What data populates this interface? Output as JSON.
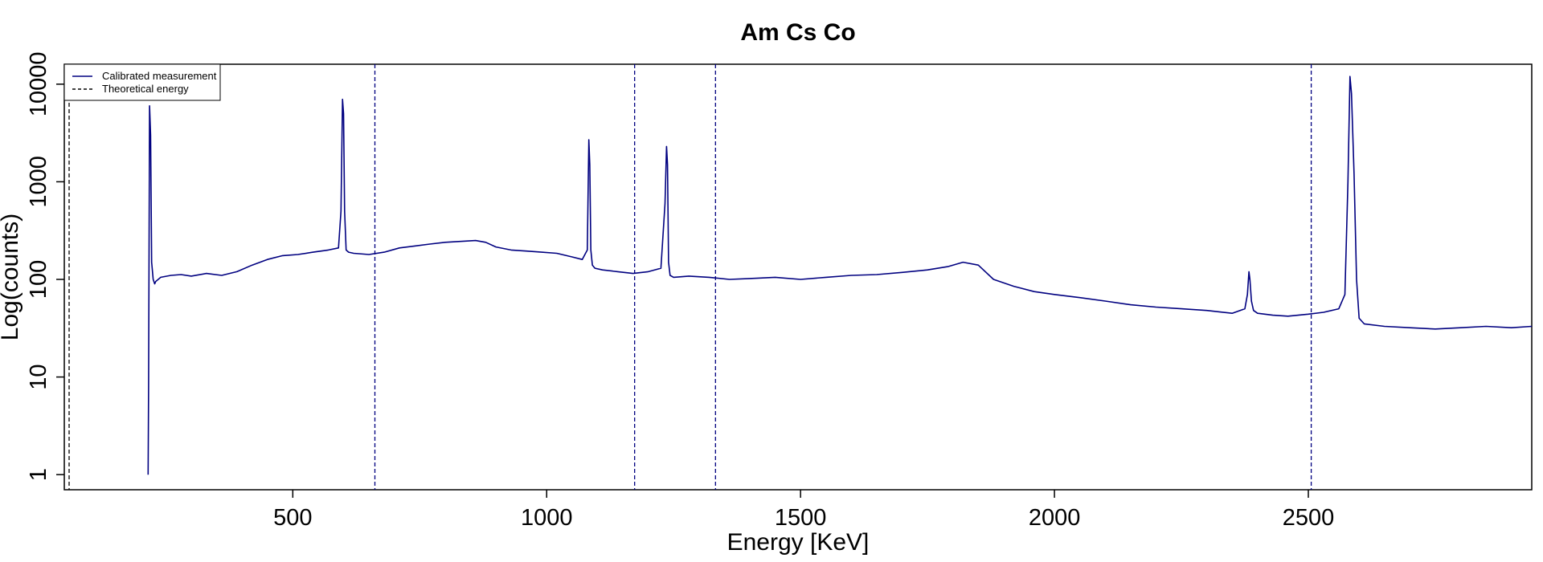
{
  "chart_data": {
    "type": "line",
    "title": "Am Cs Co",
    "xlabel": "Energy [KeV]",
    "ylabel": "Log(counts)",
    "xlim": [
      50,
      2940
    ],
    "ylim": [
      0.7,
      16000
    ],
    "y_scale": "log",
    "grid": false,
    "legend_placement": "top-left",
    "x_ticks": [
      500,
      1000,
      1500,
      2000,
      2500
    ],
    "x_tick_labels": [
      "500",
      "1000",
      "1500",
      "2000",
      "2500"
    ],
    "y_ticks": [
      1,
      10,
      100,
      1000,
      10000
    ],
    "y_tick_labels": [
      "1",
      "10",
      "100",
      "1000",
      "10000"
    ],
    "series": [
      {
        "name": "Calibrated measurement",
        "style": "solid",
        "color": "#000080",
        "x": [
          215,
          216,
          218,
          220,
          222,
          225,
          228,
          230,
          240,
          260,
          280,
          300,
          330,
          360,
          390,
          420,
          450,
          480,
          510,
          540,
          570,
          590,
          595,
          598,
          600,
          602,
          605,
          610,
          620,
          650,
          680,
          710,
          740,
          770,
          800,
          830,
          860,
          880,
          900,
          930,
          960,
          990,
          1020,
          1050,
          1070,
          1080,
          1083,
          1085,
          1087,
          1090,
          1095,
          1110,
          1140,
          1170,
          1200,
          1225,
          1233,
          1236,
          1238,
          1240,
          1243,
          1250,
          1280,
          1320,
          1360,
          1400,
          1450,
          1500,
          1550,
          1600,
          1650,
          1700,
          1750,
          1790,
          1820,
          1850,
          1880,
          1920,
          1960,
          2000,
          2050,
          2100,
          2150,
          2200,
          2250,
          2300,
          2350,
          2375,
          2380,
          2383,
          2385,
          2388,
          2392,
          2400,
          2430,
          2460,
          2500,
          2530,
          2560,
          2572,
          2578,
          2582,
          2585,
          2590,
          2595,
          2600,
          2610,
          2650,
          2700,
          2750,
          2800,
          2850,
          2900,
          2940
        ],
        "y": [
          1,
          8,
          6000,
          3000,
          150,
          100,
          90,
          95,
          105,
          110,
          112,
          108,
          115,
          110,
          120,
          140,
          160,
          175,
          180,
          190,
          200,
          210,
          500,
          7000,
          5000,
          500,
          200,
          190,
          185,
          180,
          190,
          210,
          220,
          230,
          240,
          245,
          250,
          240,
          215,
          200,
          195,
          190,
          185,
          170,
          160,
          200,
          2700,
          1500,
          200,
          140,
          130,
          125,
          120,
          115,
          120,
          130,
          600,
          2300,
          1500,
          150,
          110,
          105,
          108,
          105,
          100,
          102,
          105,
          100,
          105,
          110,
          112,
          118,
          125,
          135,
          150,
          140,
          100,
          85,
          75,
          70,
          65,
          60,
          55,
          52,
          50,
          48,
          45,
          50,
          70,
          120,
          100,
          60,
          48,
          45,
          43,
          42,
          44,
          46,
          50,
          70,
          1000,
          12000,
          8000,
          1200,
          100,
          40,
          35,
          33,
          32,
          31,
          32,
          33,
          32,
          33
        ]
      },
      {
        "name": "Theoretical energy",
        "style": "dashed",
        "color": "#000000",
        "x": [
          59.5
        ]
      },
      {
        "name": "",
        "style": "dashed",
        "color": "#000080",
        "x": [
          661.7,
          1173.2,
          1332.5,
          2505.7
        ]
      }
    ]
  }
}
